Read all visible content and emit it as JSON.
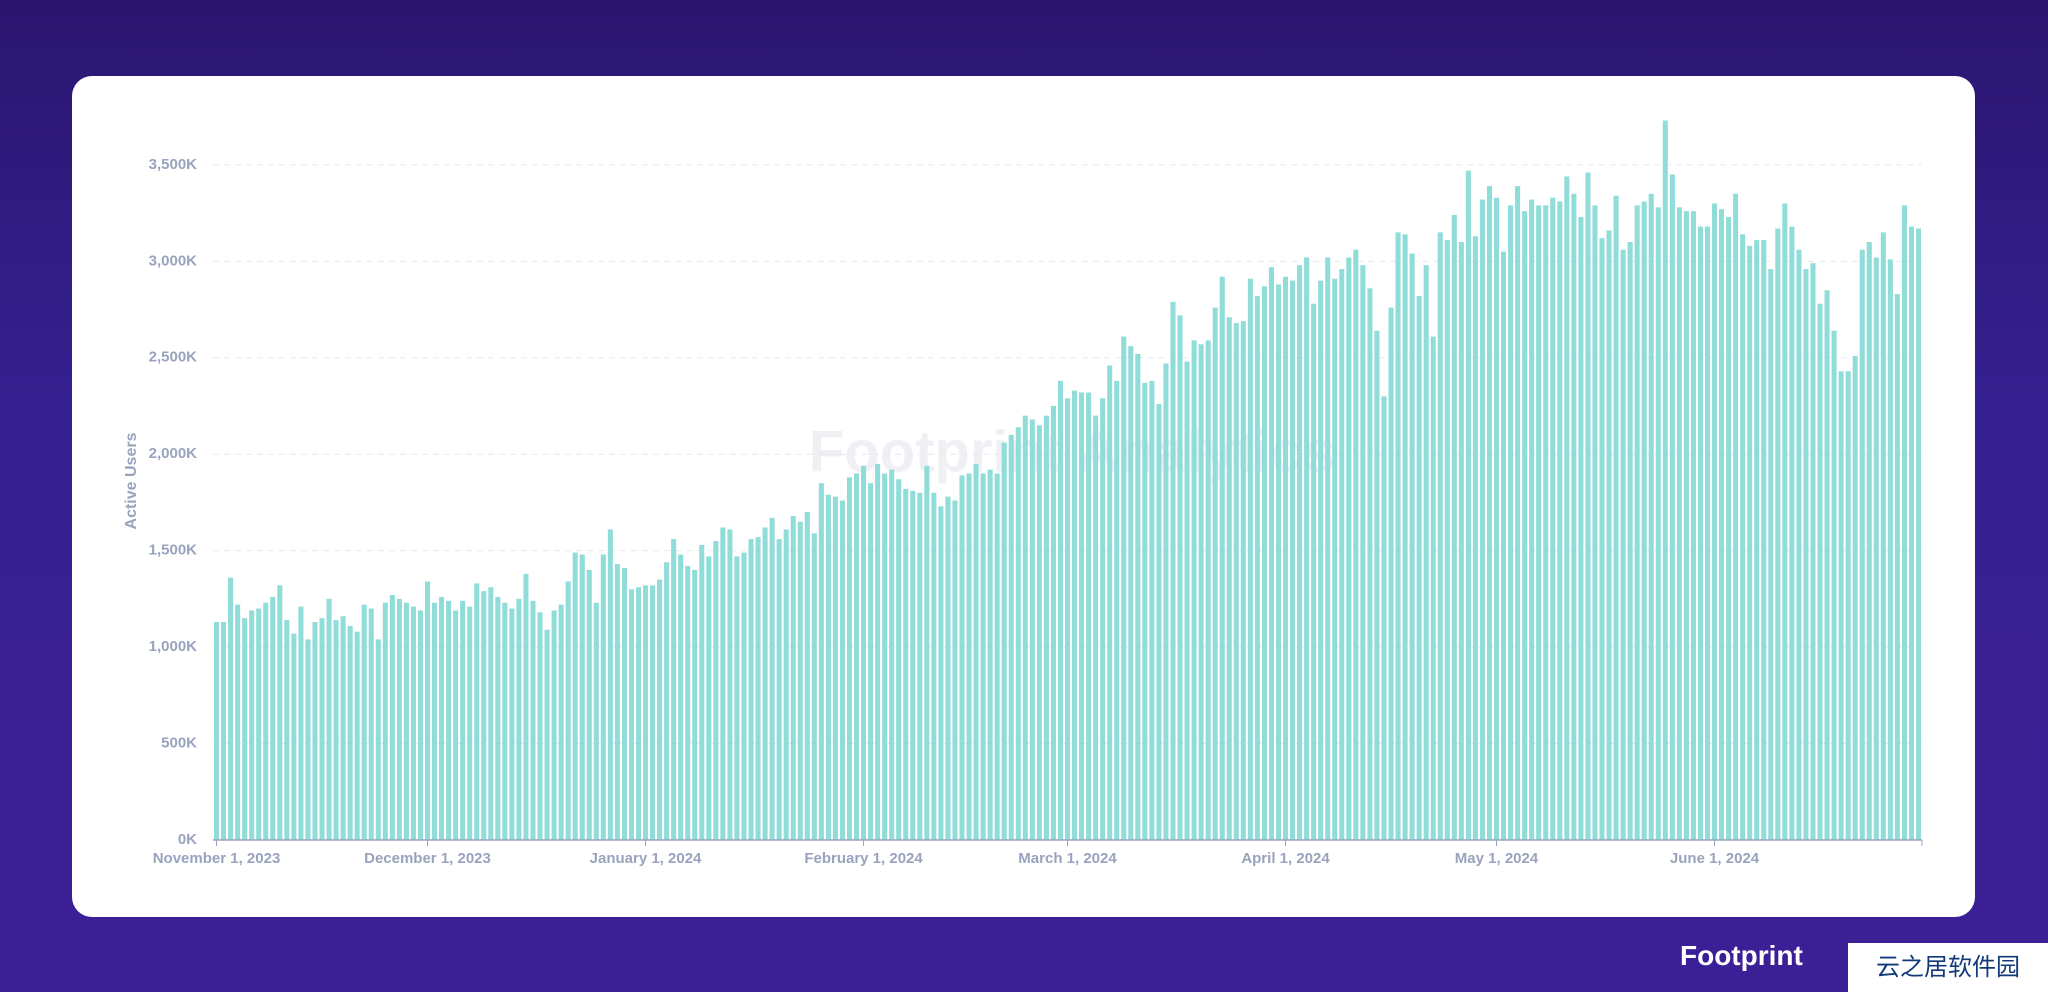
{
  "chart_data": {
    "type": "bar",
    "y_label": "Active Users",
    "watermark": "Footprint Analytics",
    "color": "#8fdcd8",
    "grid": true,
    "ylim": [
      0,
      3800
    ],
    "yticks": [
      {
        "value": 0,
        "label": "0K"
      },
      {
        "value": 500,
        "label": "500K"
      },
      {
        "value": 1000,
        "label": "1,000K"
      },
      {
        "value": 1500,
        "label": "1,500K"
      },
      {
        "value": 2000,
        "label": "2,000K"
      },
      {
        "value": 2500,
        "label": "2,500K"
      },
      {
        "value": 3000,
        "label": "3,000K"
      },
      {
        "value": 3500,
        "label": "3,500K"
      }
    ],
    "categories": [
      "November 1, 2023",
      null,
      null,
      null,
      null,
      null,
      null,
      null,
      null,
      null,
      null,
      null,
      null,
      null,
      null,
      null,
      null,
      null,
      null,
      null,
      null,
      null,
      null,
      null,
      null,
      null,
      null,
      null,
      null,
      null,
      "December 1, 2023",
      null,
      null,
      null,
      null,
      null,
      null,
      null,
      null,
      null,
      null,
      null,
      null,
      null,
      null,
      null,
      null,
      null,
      null,
      null,
      null,
      null,
      null,
      null,
      null,
      null,
      null,
      null,
      null,
      null,
      null,
      "January 1, 2024",
      null,
      null,
      null,
      null,
      null,
      null,
      null,
      null,
      null,
      null,
      null,
      null,
      null,
      null,
      null,
      null,
      null,
      null,
      null,
      null,
      null,
      null,
      null,
      null,
      null,
      null,
      null,
      null,
      null,
      null,
      "February 1, 2024",
      null,
      null,
      null,
      null,
      null,
      null,
      null,
      null,
      null,
      null,
      null,
      null,
      null,
      null,
      null,
      null,
      null,
      null,
      null,
      null,
      null,
      null,
      null,
      null,
      null,
      null,
      null,
      null,
      "March 1, 2024",
      null,
      null,
      null,
      null,
      null,
      null,
      null,
      null,
      null,
      null,
      null,
      null,
      null,
      null,
      null,
      null,
      null,
      null,
      null,
      null,
      null,
      null,
      null,
      null,
      null,
      null,
      null,
      null,
      null,
      null,
      "April 1, 2024",
      null,
      null,
      null,
      null,
      null,
      null,
      null,
      null,
      null,
      null,
      null,
      null,
      null,
      null,
      null,
      null,
      null,
      null,
      null,
      null,
      null,
      null,
      null,
      null,
      null,
      null,
      null,
      null,
      null,
      "May 1, 2024",
      null,
      null,
      null,
      null,
      null,
      null,
      null,
      null,
      null,
      null,
      null,
      null,
      null,
      null,
      null,
      null,
      null,
      null,
      null,
      null,
      null,
      null,
      null,
      null,
      null,
      null,
      null,
      null,
      null,
      null,
      "June 1, 2024",
      null,
      null,
      null,
      null,
      null,
      null,
      null,
      null,
      null,
      null,
      null,
      null,
      null,
      null,
      null,
      null,
      null,
      null,
      null,
      null,
      null,
      null,
      null,
      null,
      null,
      null,
      null,
      null,
      null
    ],
    "values": [
      1130,
      1130,
      1360,
      1220,
      1150,
      1190,
      1200,
      1230,
      1260,
      1320,
      1140,
      1070,
      1210,
      1040,
      1130,
      1150,
      1250,
      1140,
      1160,
      1110,
      1080,
      1220,
      1200,
      1040,
      1230,
      1270,
      1250,
      1230,
      1210,
      1190,
      1340,
      1230,
      1260,
      1240,
      1190,
      1240,
      1210,
      1330,
      1290,
      1310,
      1260,
      1230,
      1200,
      1250,
      1380,
      1240,
      1180,
      1090,
      1190,
      1220,
      1340,
      1490,
      1480,
      1400,
      1230,
      1480,
      1610,
      1430,
      1410,
      1300,
      1310,
      1320,
      1320,
      1350,
      1440,
      1560,
      1480,
      1420,
      1400,
      1530,
      1470,
      1550,
      1620,
      1610,
      1470,
      1490,
      1560,
      1570,
      1620,
      1670,
      1560,
      1610,
      1680,
      1650,
      1700,
      1590,
      1850,
      1790,
      1780,
      1760,
      1880,
      1900,
      1940,
      1850,
      1950,
      1900,
      1920,
      1870,
      1820,
      1810,
      1800,
      1940,
      1800,
      1730,
      1780,
      1760,
      1890,
      1900,
      1950,
      1900,
      1920,
      1900,
      2060,
      2100,
      2140,
      2200,
      2180,
      2150,
      2200,
      2250,
      2380,
      2290,
      2330,
      2320,
      2320,
      2200,
      2290,
      2460,
      2380,
      2610,
      2560,
      2520,
      2370,
      2380,
      2260,
      2470,
      2790,
      2720,
      2480,
      2590,
      2570,
      2590,
      2760,
      2920,
      2710,
      2680,
      2690,
      2910,
      2820,
      2870,
      2970,
      2880,
      2920,
      2900,
      2980,
      3020,
      2780,
      2900,
      3020,
      2910,
      2960,
      3020,
      3060,
      2980,
      2860,
      2640,
      2300,
      2760,
      3150,
      3140,
      3040,
      2820,
      2980,
      2610,
      3150,
      3110,
      3240,
      3100,
      3470,
      3130,
      3320,
      3390,
      3330,
      3050,
      3290,
      3390,
      3260,
      3320,
      3290,
      3290,
      3330,
      3310,
      3440,
      3350,
      3230,
      3460,
      3290,
      3120,
      3160,
      3340,
      3060,
      3100,
      3290,
      3310,
      3350,
      3280,
      3730,
      3450,
      3280,
      3260,
      3260,
      3180,
      3180,
      3300,
      3270,
      3230,
      3350,
      3140,
      3080,
      3110,
      3110,
      2960,
      3170,
      3300,
      3180,
      3060,
      2960,
      2990,
      2780,
      2850,
      2640,
      2430,
      2430,
      2510,
      3060,
      3100,
      3020,
      3150,
      3010,
      2830,
      3290,
      3180,
      3170
    ]
  },
  "footer": {
    "logo": "Footprint",
    "watermark": "云之居软件园"
  }
}
